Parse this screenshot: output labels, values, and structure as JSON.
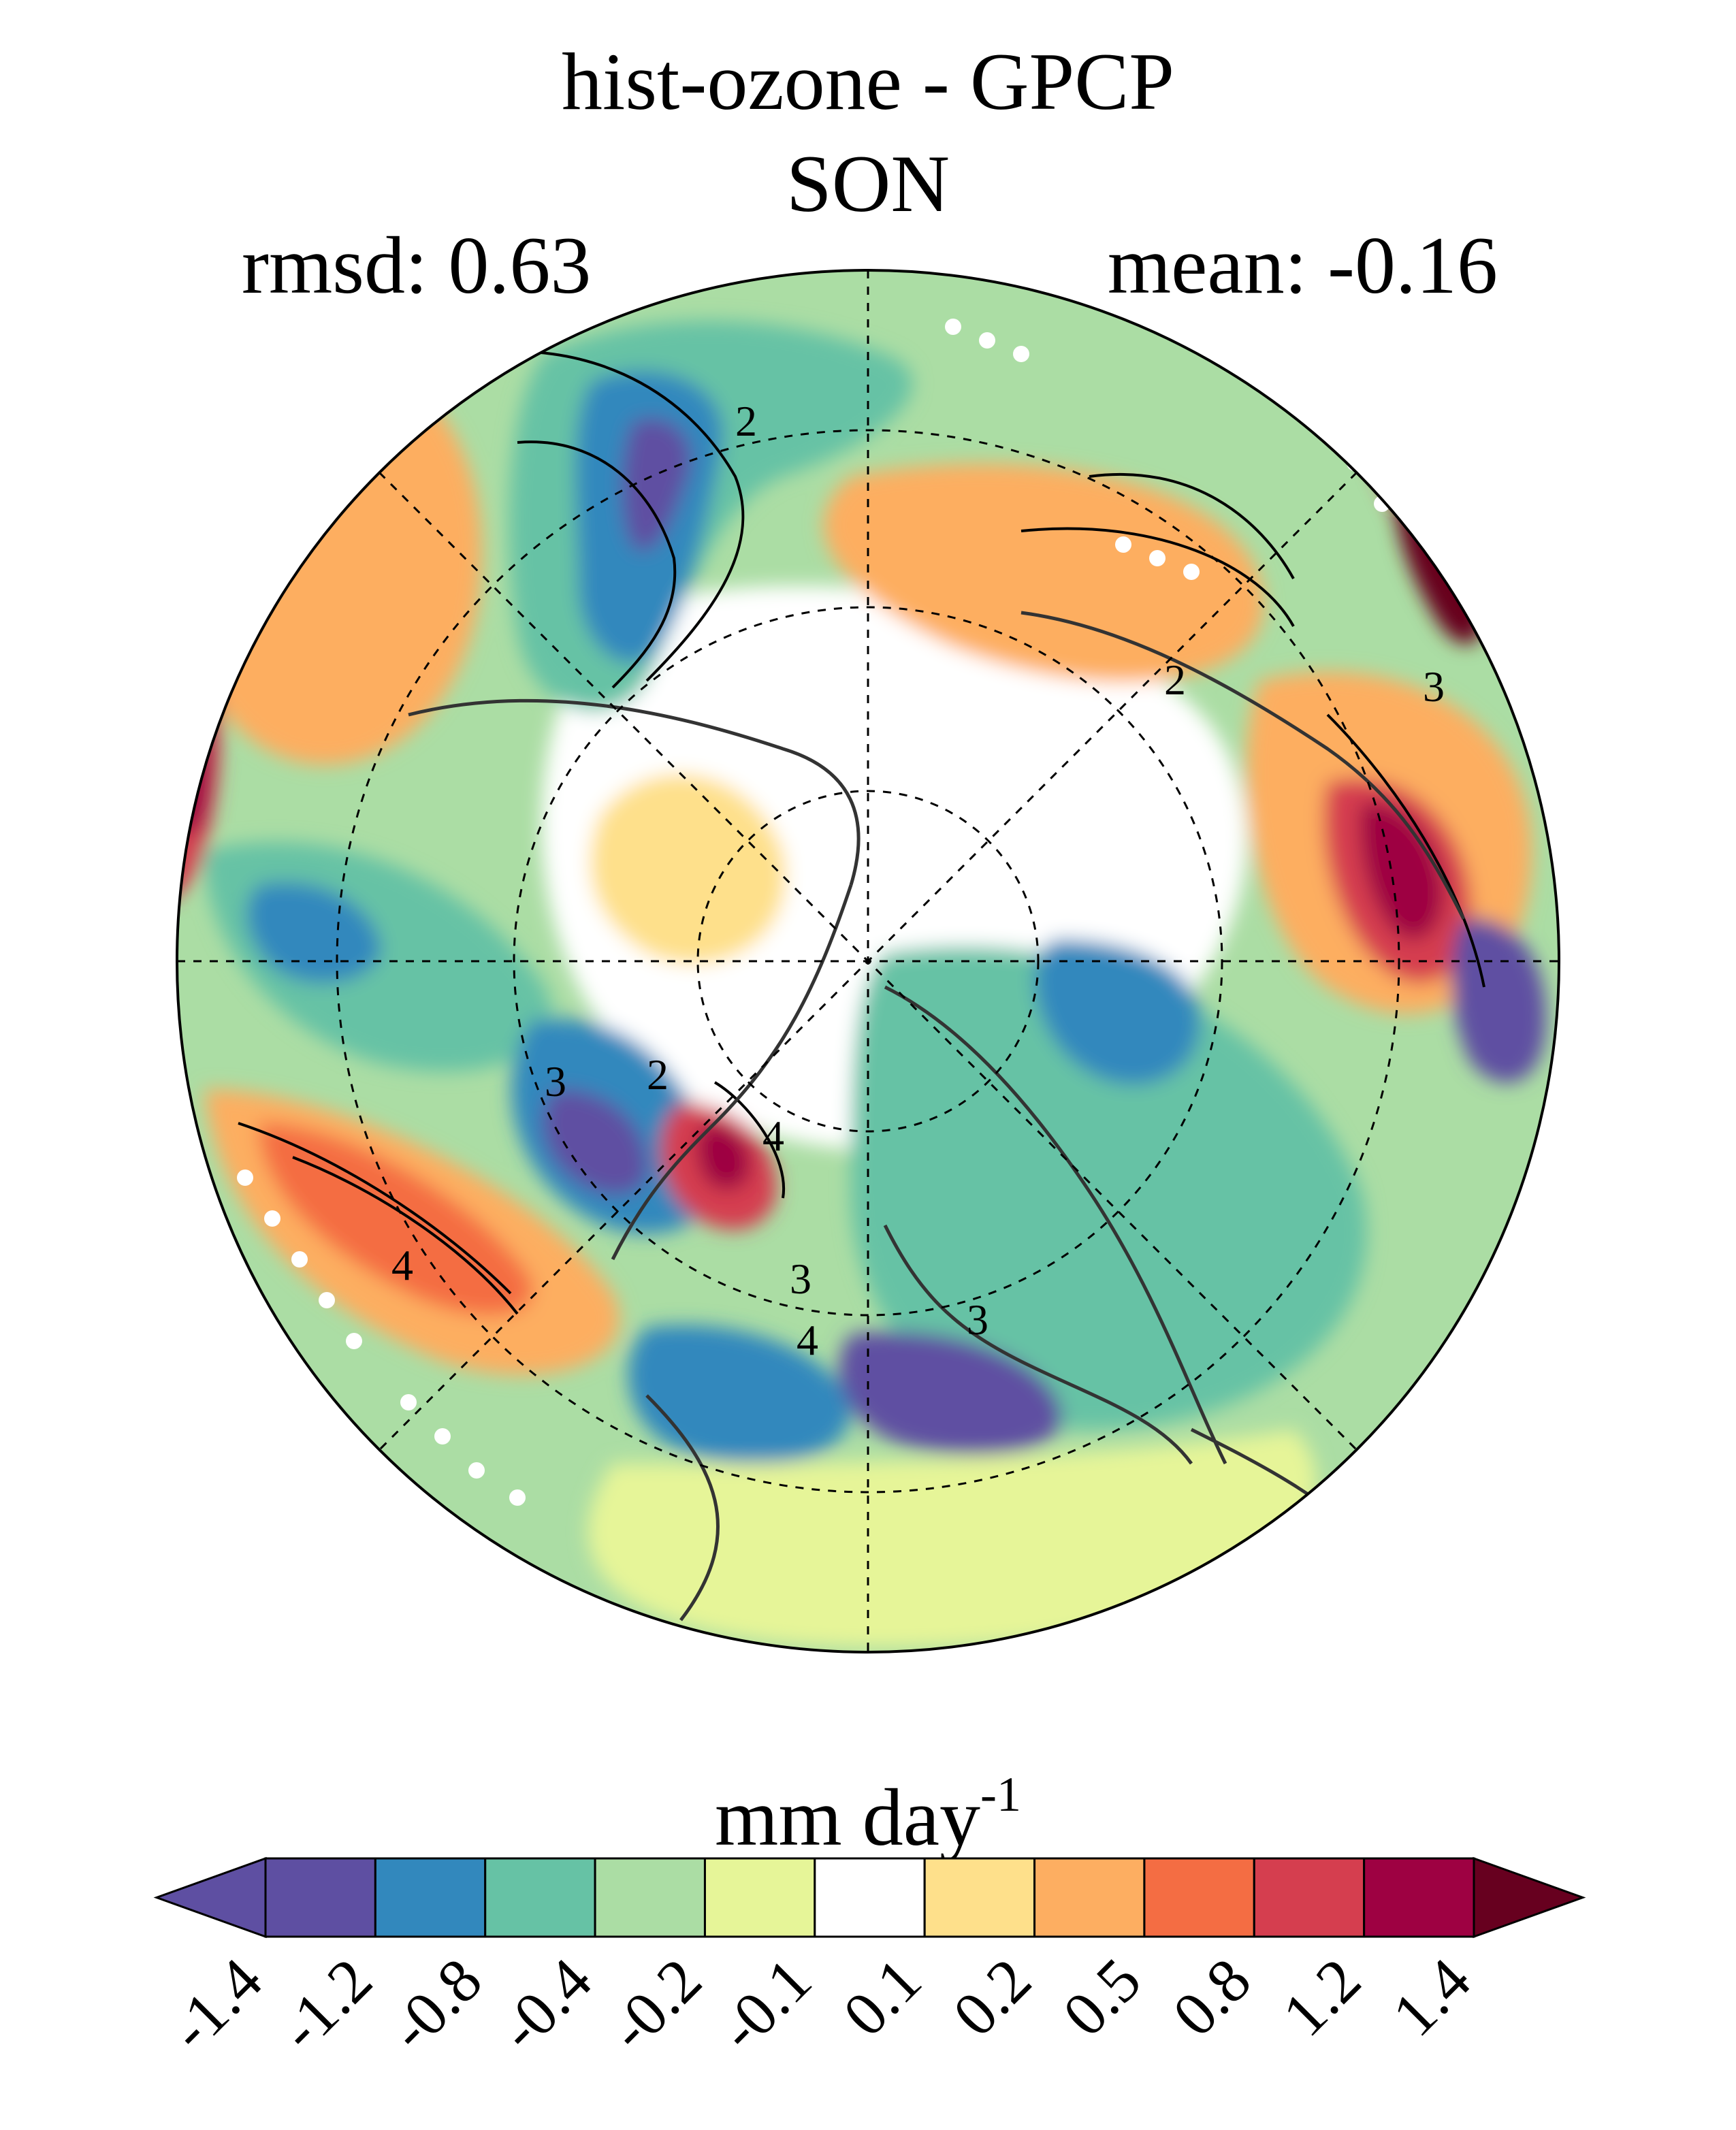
{
  "map": {
    "title": "hist-ozone - GPCP",
    "season": "SON",
    "rmsd_label": "rmsd: 0.63",
    "mean_label": "mean: -0.16",
    "contour_labels": [
      "2",
      "2",
      "3",
      "3",
      "4",
      "4",
      "2",
      "3",
      "4",
      "3"
    ]
  },
  "colorbar": {
    "units_base": "mm day",
    "units_exp": "-1",
    "ticks": [
      "-1.4",
      "-1.2",
      "-0.8",
      "-0.4",
      "-0.2",
      "-0.1",
      "0.1",
      "0.2",
      "0.5",
      "0.8",
      "1.2",
      "1.4"
    ],
    "colors": [
      "#5e4fa2",
      "#3288bd",
      "#66c2a5",
      "#abdda4",
      "#e6f598",
      "#ffffff",
      "#fee08b",
      "#fdae61",
      "#f46d43",
      "#d53e4f",
      "#9e0142"
    ],
    "extend_low_color": "#5e4fa2",
    "extend_high_color": "#67001f"
  },
  "palette": {
    "purple": "#5e4fa2",
    "blue": "#3288bd",
    "teal": "#66c2a5",
    "lightgreen": "#abdda4",
    "yellowgreen": "#e6f598",
    "white": "#ffffff",
    "yellow": "#fee08b",
    "orange": "#fdae61",
    "redorange": "#f46d43",
    "red": "#d53e4f",
    "crimson": "#9e0142",
    "darkred": "#67001f"
  }
}
